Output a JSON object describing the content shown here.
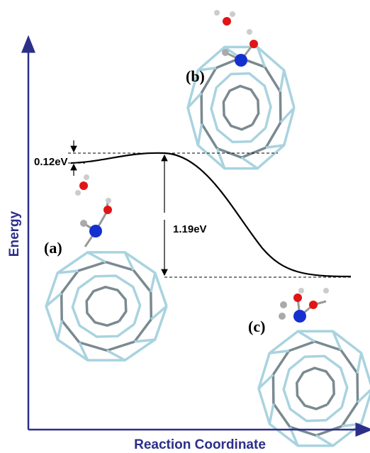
{
  "axes": {
    "y_label": "Energy",
    "x_label": "Reaction Coordinate"
  },
  "annotations": {
    "barrier": "0.12eV",
    "reaction_energy": "1.19eV"
  },
  "structures": [
    {
      "label": "(a)"
    },
    {
      "label": "(b)"
    },
    {
      "label": "(c)"
    }
  ]
}
